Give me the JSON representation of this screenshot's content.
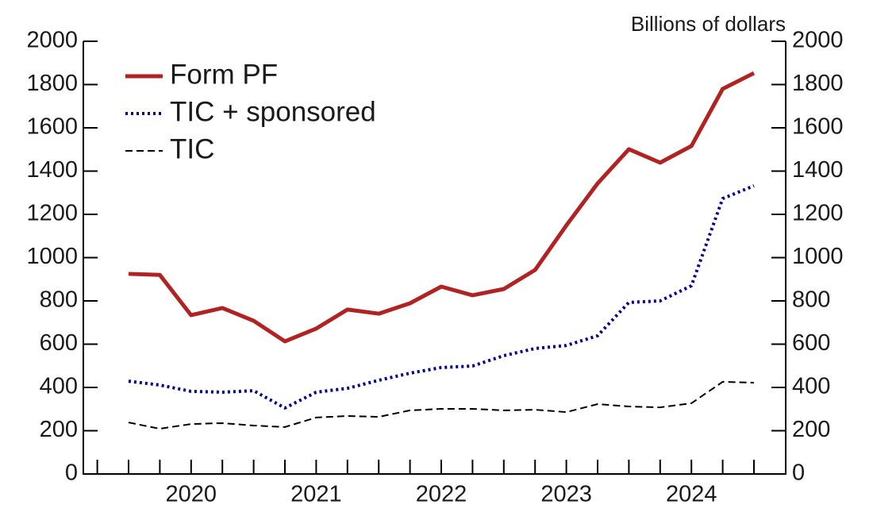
{
  "chart_data": {
    "type": "line",
    "unit_label": "Billions of dollars",
    "categories": [
      null,
      null,
      "2020",
      null,
      null,
      null,
      "2021",
      null,
      null,
      null,
      "2022",
      null,
      null,
      null,
      "2023",
      null,
      null,
      null,
      "2024",
      null,
      null
    ],
    "series": [
      {
        "name": "Form PF",
        "color": "#b22222",
        "style": "solid",
        "values": [
          925,
          920,
          734,
          767,
          708,
          613,
          672,
          760,
          741,
          789,
          866,
          826,
          855,
          943,
          1149,
          1343,
          1501,
          1439,
          1516,
          1780,
          1853
        ]
      },
      {
        "name": "TIC + sponsored",
        "color": "#00008b",
        "style": "dotted",
        "values": [
          429,
          411,
          382,
          378,
          385,
          305,
          378,
          396,
          433,
          466,
          492,
          499,
          547,
          580,
          594,
          639,
          793,
          800,
          870,
          1273,
          1332
        ]
      },
      {
        "name": "TIC",
        "color": "#000000",
        "style": "dashed",
        "values": [
          238,
          209,
          231,
          235,
          224,
          217,
          261,
          268,
          264,
          294,
          301,
          301,
          294,
          297,
          286,
          323,
          312,
          308,
          327,
          426,
          422
        ]
      }
    ],
    "ylim": [
      0,
      2000
    ],
    "yticks": [
      0,
      200,
      400,
      600,
      800,
      1000,
      1200,
      1400,
      1600,
      1800,
      2000
    ],
    "y2lim": [
      0,
      2000
    ],
    "y2ticks": [
      0,
      200,
      400,
      600,
      800,
      1000,
      1200,
      1400,
      1600,
      1800,
      2000
    ],
    "legend": "upper left",
    "grid": false
  }
}
